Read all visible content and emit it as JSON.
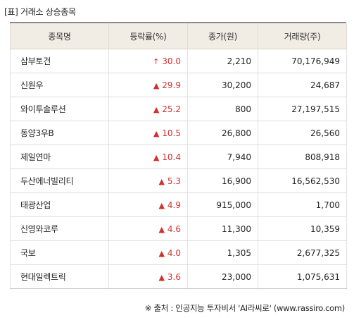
{
  "title": "[표] 거래소 상승종목",
  "headers": [
    "종목명",
    "등락률(%)",
    "종가(원)",
    "거래량(주)"
  ],
  "rows": [
    {
      "name": "삼부토건",
      "arrow": "↑",
      "rate": "30.0",
      "price": "2,210",
      "volume": "70,176,949"
    },
    {
      "name": "신원우",
      "arrow": "▲",
      "rate": "29.9",
      "price": "30,200",
      "volume": "24,687"
    },
    {
      "name": "와이투솔루션",
      "arrow": "▲",
      "rate": "25.2",
      "price": "800",
      "volume": "27,197,515"
    },
    {
      "name": "동양3우B",
      "arrow": "▲",
      "rate": "10.5",
      "price": "26,800",
      "volume": "26,560"
    },
    {
      "name": "제일연마",
      "arrow": "▲",
      "rate": "10.4",
      "price": "7,940",
      "volume": "808,918"
    },
    {
      "name": "두산에너빌리티",
      "arrow": "▲",
      "rate": "5.3",
      "price": "16,900",
      "volume": "16,562,530"
    },
    {
      "name": "태광산업",
      "arrow": "▲",
      "rate": "4.9",
      "price": "915,000",
      "volume": "1,700"
    },
    {
      "name": "신영와코루",
      "arrow": "▲",
      "rate": "4.6",
      "price": "11,300",
      "volume": "10,359"
    },
    {
      "name": "국보",
      "arrow": "▲",
      "rate": "4.0",
      "price": "1,305",
      "volume": "2,677,325"
    },
    {
      "name": "현대일렉트릭",
      "arrow": "▲",
      "rate": "3.6",
      "price": "23,000",
      "volume": "1,075,631"
    }
  ],
  "source": "※ 출처 : 인공지능 투자비서 'AI라씨로' (www.rassiro.com)",
  "colors": {
    "up": "#d32f2f",
    "header_bg": "#f2ede4"
  }
}
